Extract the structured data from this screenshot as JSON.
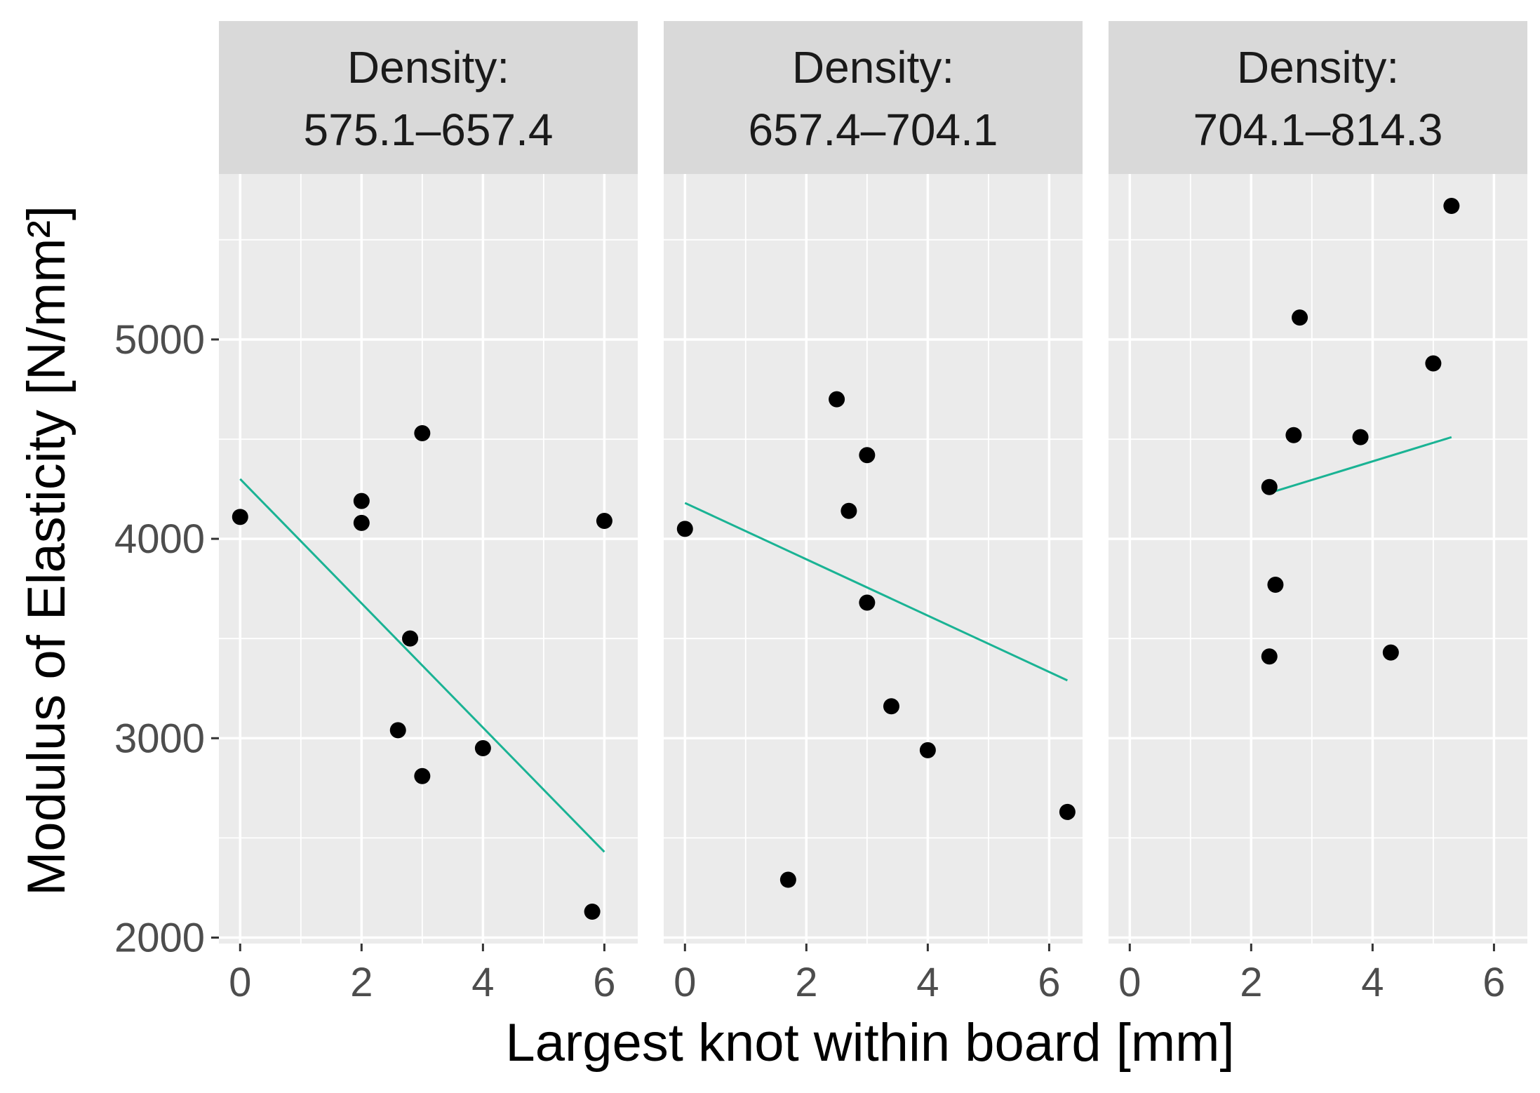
{
  "chart_data": {
    "type": "scatter",
    "xlabel": "Largest knot within board [mm]",
    "ylabel": "Modulus of Elasticity [N/mm²]",
    "xlim": [
      -0.35,
      6.55
    ],
    "ylim": [
      1970,
      5830
    ],
    "x_ticks": [
      0,
      2,
      4,
      6
    ],
    "x_tick_labels": [
      "0",
      "2",
      "4",
      "6"
    ],
    "y_ticks": [
      2000,
      3000,
      4000,
      5000
    ],
    "y_tick_labels": [
      "2000",
      "3000",
      "4000",
      "5000"
    ],
    "grid": true,
    "fit_line_color": "#1ab394",
    "point_color": "#000000",
    "panel_background": "#ebebeb",
    "strip_background": "#d9d9d9",
    "panels": [
      {
        "strip_label_line1": "Density:",
        "strip_label_line2": "575.1–657.4",
        "points": [
          {
            "x": 0.0,
            "y": 4110
          },
          {
            "x": 2.0,
            "y": 4190
          },
          {
            "x": 2.0,
            "y": 4080
          },
          {
            "x": 3.0,
            "y": 4530
          },
          {
            "x": 2.8,
            "y": 3500
          },
          {
            "x": 2.6,
            "y": 3040
          },
          {
            "x": 3.0,
            "y": 2810
          },
          {
            "x": 4.0,
            "y": 2950
          },
          {
            "x": 6.0,
            "y": 4090
          },
          {
            "x": 5.8,
            "y": 2130
          }
        ],
        "fit": {
          "x1": 0.0,
          "y1": 4300,
          "x2": 6.0,
          "y2": 2430
        }
      },
      {
        "strip_label_line1": "Density:",
        "strip_label_line2": "657.4–704.1",
        "points": [
          {
            "x": 0.0,
            "y": 4050
          },
          {
            "x": 2.5,
            "y": 4700
          },
          {
            "x": 3.0,
            "y": 4420
          },
          {
            "x": 2.7,
            "y": 4140
          },
          {
            "x": 3.0,
            "y": 3680
          },
          {
            "x": 3.4,
            "y": 3160
          },
          {
            "x": 4.0,
            "y": 2940
          },
          {
            "x": 1.7,
            "y": 2290
          },
          {
            "x": 6.3,
            "y": 2630
          }
        ],
        "fit": {
          "x1": 0.0,
          "y1": 4180,
          "x2": 6.3,
          "y2": 3290
        }
      },
      {
        "strip_label_line1": "Density:",
        "strip_label_line2": "704.1–814.3",
        "points": [
          {
            "x": 5.3,
            "y": 5670
          },
          {
            "x": 2.8,
            "y": 5110
          },
          {
            "x": 5.0,
            "y": 4880
          },
          {
            "x": 2.7,
            "y": 4520
          },
          {
            "x": 3.8,
            "y": 4510
          },
          {
            "x": 2.3,
            "y": 4260
          },
          {
            "x": 2.4,
            "y": 3770
          },
          {
            "x": 2.3,
            "y": 3410
          },
          {
            "x": 4.3,
            "y": 3430
          }
        ],
        "fit": {
          "x1": 2.3,
          "y1": 4230,
          "x2": 5.3,
          "y2": 4510
        }
      }
    ]
  }
}
